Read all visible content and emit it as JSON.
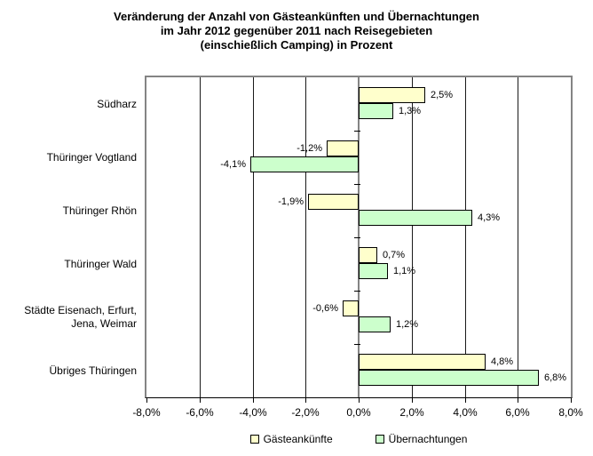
{
  "title_lines": [
    "Veränderung der Anzahl von Gästeankünften und Übernachtungen",
    "im Jahr 2012 gegenüber 2011 nach Reisegebieten",
    "(einschießlich Camping) in Prozent"
  ],
  "chart_data": {
    "type": "bar",
    "orientation": "horizontal",
    "title": "Veränderung der Anzahl von Gästeankünften und Übernachtungen im Jahr 2012 gegenüber 2011 nach Reisegebieten (einschießlich Camping) in Prozent",
    "categories": [
      "Südharz",
      "Thüringer Vogtland",
      "Thüringer Rhön",
      "Thüringer Wald",
      "Städte Eisenach, Erfurt, Jena, Weimar",
      "Übriges Thüringen"
    ],
    "category_display_lines": [
      [
        "Südharz"
      ],
      [
        "Thüringer Vogtland"
      ],
      [
        "Thüringer Rhön"
      ],
      [
        "Thüringer Wald"
      ],
      [
        "Städte Eisenach, Erfurt,",
        "Jena, Weimar"
      ],
      [
        "Übriges Thüringen"
      ]
    ],
    "series": [
      {
        "name": "Gästeankünfte",
        "color": "#FFFFCC",
        "values": [
          2.5,
          -1.2,
          -1.9,
          0.7,
          -0.6,
          4.8
        ],
        "labels": [
          "2,5%",
          "-1,2%",
          "-1,9%",
          "0,7%",
          "-0,6%",
          "4,8%"
        ]
      },
      {
        "name": "Übernachtungen",
        "color": "#CCFFCC",
        "values": [
          1.3,
          -4.1,
          4.3,
          1.1,
          1.2,
          6.8
        ],
        "labels": [
          "1,3%",
          "-4,1%",
          "4,3%",
          "1,1%",
          "1,2%",
          "6,8%"
        ]
      }
    ],
    "xlim": [
      -8,
      8
    ],
    "x_ticks": [
      -8,
      -6,
      -4,
      -2,
      0,
      2,
      4,
      6,
      8
    ],
    "x_tick_labels": [
      "-8,0%",
      "-6,0%",
      "-4,0%",
      "-2,0%",
      "0,0%",
      "2,0%",
      "4,0%",
      "6,0%",
      "8,0%"
    ],
    "grid": true,
    "legend_position": "bottom",
    "colors": {
      "grid": "#1a1a1a",
      "plot_border": "#848484",
      "bar_border": "#000000",
      "axis": "#000000"
    }
  }
}
